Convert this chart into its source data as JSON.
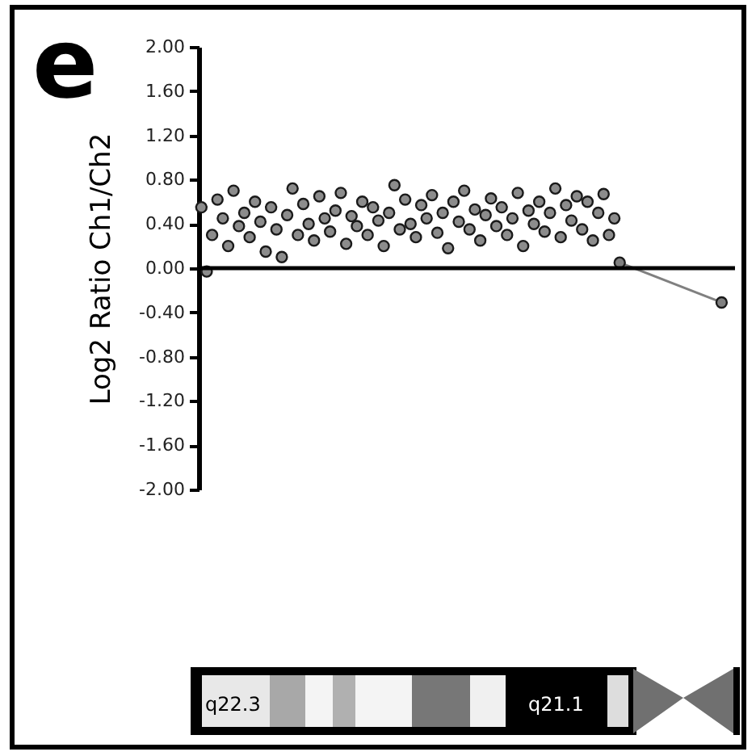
{
  "chart_data": {
    "type": "scatter",
    "title": "e",
    "ylabel": "Log2 Ratio Ch1/Ch2",
    "annotations": [
      "q22.3",
      "q21.1"
    ],
    "categories": [
      null,
      null,
      null,
      null,
      null,
      null,
      null,
      null,
      null,
      null,
      null,
      null,
      null,
      null,
      null,
      null,
      null,
      null,
      null,
      null,
      null,
      null,
      null,
      null,
      null,
      null,
      null,
      null,
      null,
      null,
      null,
      null,
      null,
      null,
      null,
      null,
      null,
      null,
      null,
      null,
      null,
      null,
      null,
      null,
      null,
      null,
      null,
      null,
      null,
      null,
      null,
      null,
      null,
      null,
      null,
      null,
      null,
      null,
      null,
      null,
      null,
      null,
      null,
      null,
      null,
      null,
      null,
      null,
      null,
      null,
      null,
      null,
      null,
      null,
      null,
      null,
      null,
      null,
      null,
      null,
      null,
      null,
      null,
      null,
      null,
      null,
      null,
      null,
      null,
      null,
      null,
      null,
      null,
      null,
      null,
      null,
      null,
      null,
      null,
      null
    ],
    "tick_labels": "y",
    "marker": "circle",
    "ylim": [
      -2,
      2
    ],
    "yticks": [
      {
        "value": 2,
        "label": "2.00"
      },
      {
        "value": 1.6,
        "label": "1.60"
      },
      {
        "value": 1.2,
        "label": "1.20"
      },
      {
        "value": 0.8,
        "label": "0.80"
      },
      {
        "value": 0.4,
        "label": "0.40"
      },
      {
        "value": 0,
        "label": "0.00"
      },
      {
        "value": -0.4,
        "label": "-0.40"
      },
      {
        "value": -0.8,
        "label": "-0.80"
      },
      {
        "value": -1.2,
        "label": "-1.20"
      },
      {
        "value": -1.6,
        "label": "-1.60"
      },
      {
        "value": -2,
        "label": "-2.00"
      }
    ],
    "ref_lines": [
      {
        "axis": "y",
        "value": 0,
        "color": "#000000"
      }
    ],
    "series": [
      {
        "color": "#8c8c8c",
        "values": [
          0.55,
          -0.03,
          0.3,
          0.62,
          0.45,
          0.2,
          0.7,
          0.38,
          0.5,
          0.28,
          0.6,
          0.42,
          0.15,
          0.55,
          0.35,
          0.1,
          0.48,
          0.72,
          0.3,
          0.58,
          0.4,
          0.25,
          0.65,
          0.45,
          0.33,
          0.52,
          0.68,
          0.22,
          0.47,
          0.38,
          0.6,
          0.3,
          0.55,
          0.43,
          0.2,
          0.5,
          0.75,
          0.35,
          0.62,
          0.4,
          0.28,
          0.57,
          0.45,
          0.66,
          0.32,
          0.5,
          0.18,
          0.6,
          0.42,
          0.7,
          0.35,
          0.53,
          0.25,
          0.48,
          0.63,
          0.38,
          0.55,
          0.3,
          0.45,
          0.68,
          0.2,
          0.52,
          0.4,
          0.6,
          0.33,
          0.5,
          0.72,
          0.28,
          0.57,
          0.43,
          0.65,
          0.35,
          0.6,
          0.25,
          0.5,
          0.67,
          0.3,
          0.45,
          null,
          null,
          null,
          null,
          null,
          null,
          null,
          null,
          null,
          null,
          null,
          null,
          null,
          null,
          null,
          null,
          null,
          null,
          null,
          null,
          null,
          null
        ]
      },
      {
        "type": "line",
        "color": "#808080",
        "values": [
          null,
          null,
          null,
          null,
          null,
          null,
          null,
          null,
          null,
          null,
          null,
          null,
          null,
          null,
          null,
          null,
          null,
          null,
          null,
          null,
          null,
          null,
          null,
          null,
          null,
          null,
          null,
          null,
          null,
          null,
          null,
          null,
          null,
          null,
          null,
          null,
          null,
          null,
          null,
          null,
          null,
          null,
          null,
          null,
          null,
          null,
          null,
          null,
          null,
          null,
          null,
          null,
          null,
          null,
          null,
          null,
          null,
          null,
          null,
          null,
          null,
          null,
          null,
          null,
          null,
          null,
          null,
          null,
          null,
          null,
          null,
          null,
          null,
          null,
          null,
          null,
          null,
          null,
          0.05,
          null,
          null,
          null,
          null,
          null,
          null,
          null,
          null,
          null,
          null,
          null,
          null,
          null,
          null,
          null,
          null,
          null,
          null,
          -0.31,
          null,
          null
        ]
      }
    ]
  }
}
